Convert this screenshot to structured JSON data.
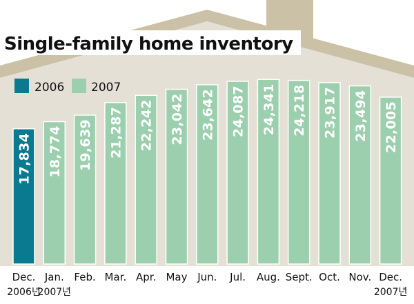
{
  "colors": {
    "house_fill": "#e4e0d6",
    "roof": "#cbc1a6",
    "series_2006": "#0a7a90",
    "series_2007": "#9ccfae",
    "bar_border": "#ffffff"
  },
  "chart_data": {
    "type": "bar",
    "title": "Single-family home inventory",
    "xlabel": "",
    "ylabel": "",
    "legend_position": "top-left",
    "grid": false,
    "ylim": [
      0,
      25000
    ],
    "series": [
      {
        "name": "2006",
        "color": "#0a7a90"
      },
      {
        "name": "2007",
        "color": "#9ccfae"
      }
    ],
    "categories": [
      "Dec.",
      "Jan.",
      "Feb.",
      "Mar.",
      "Apr.",
      "May",
      "Jun.",
      "Jul.",
      "Aug.",
      "Sept.",
      "Oct.",
      "Nov.",
      "Dec."
    ],
    "values": [
      17834,
      18774,
      19639,
      21287,
      22242,
      23042,
      23642,
      24087,
      24341,
      24218,
      23917,
      23494,
      22005
    ],
    "value_labels": [
      "17,834",
      "18,774",
      "19,639",
      "21,287",
      "22,242",
      "23,042",
      "23,642",
      "24,087",
      "24,341",
      "24,218",
      "23,917",
      "23,494",
      "22,005"
    ],
    "bar_series": [
      "2006",
      "2007",
      "2007",
      "2007",
      "2007",
      "2007",
      "2007",
      "2007",
      "2007",
      "2007",
      "2007",
      "2007",
      "2007"
    ],
    "sublabels": [
      "2006년",
      "2007년",
      "",
      "",
      "",
      "",
      "",
      "",
      "",
      "",
      "",
      "",
      "2007년"
    ]
  }
}
